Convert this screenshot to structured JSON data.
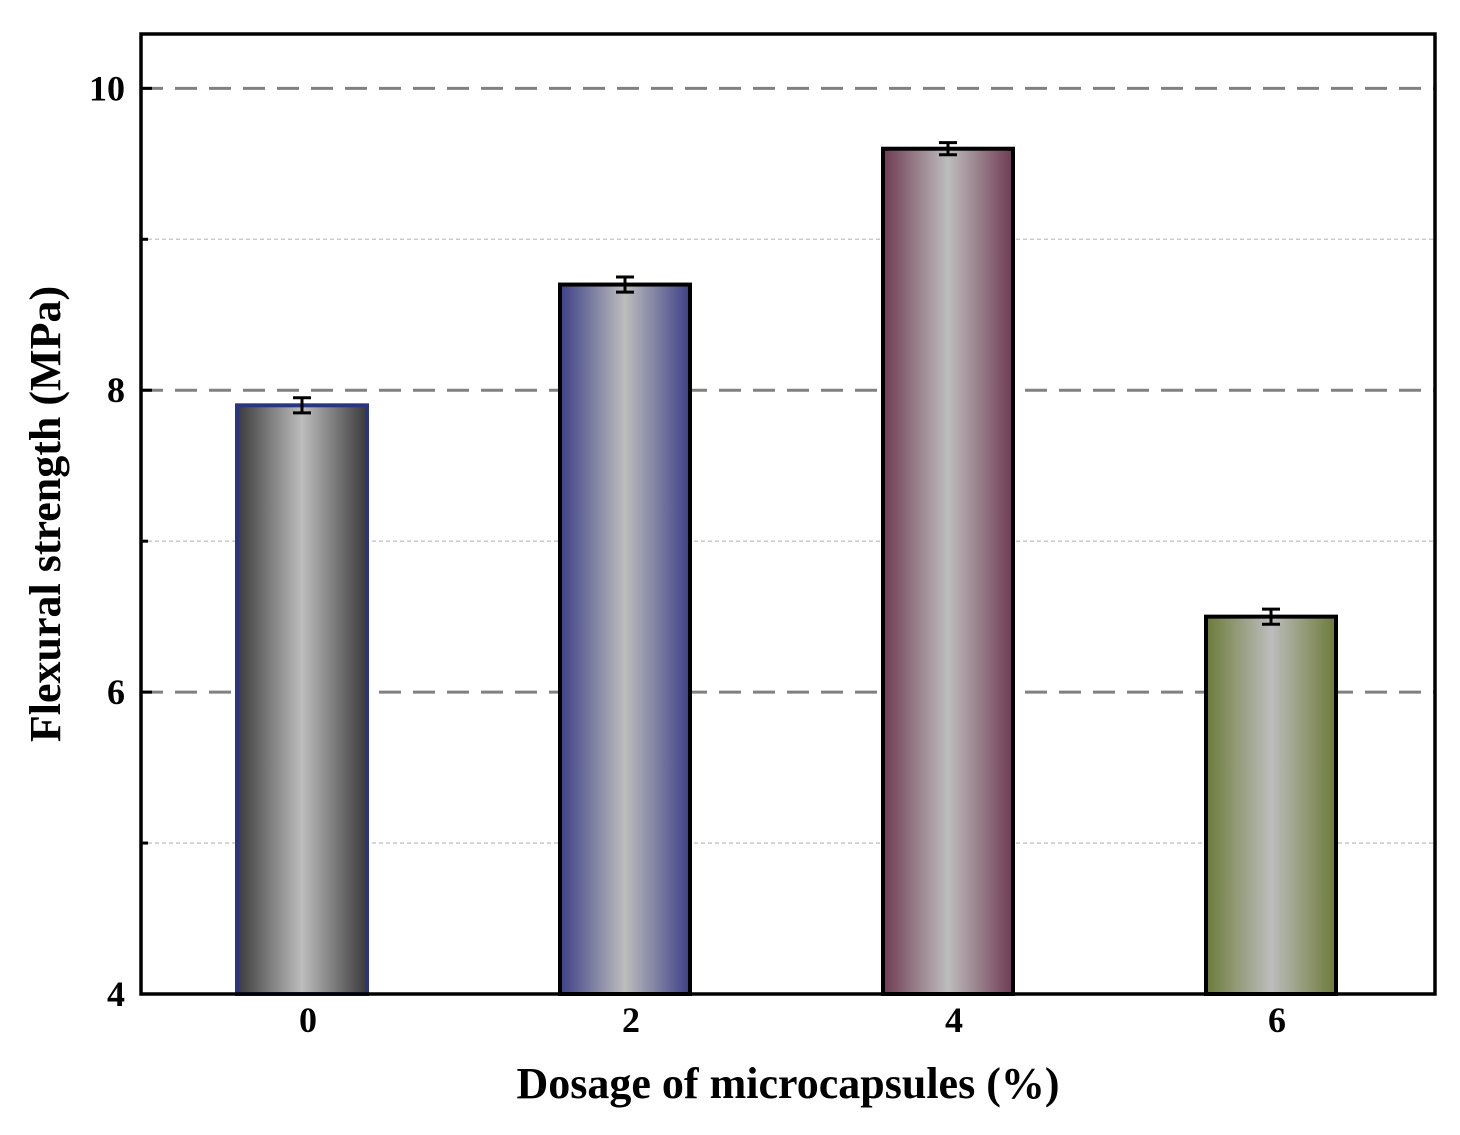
{
  "chart_data": {
    "type": "bar",
    "title": "",
    "xlabel": "Dosage of microcapsules (%)",
    "ylabel": "Flexural strength (MPa)",
    "categories": [
      "0",
      "2",
      "4",
      "6"
    ],
    "values": [
      7.9,
      8.7,
      9.6,
      6.5
    ],
    "errors": [
      0.05,
      0.05,
      0.04,
      0.05
    ],
    "ylim": [
      4,
      10.36
    ],
    "yticks_major": [
      4,
      6,
      8,
      10
    ],
    "yticks_minor": [
      5,
      7,
      9
    ],
    "grid": true,
    "bar_colors": [
      "#3a3a3a",
      "#3c3f86",
      "#6f3a52",
      "#6b7a38"
    ],
    "bar_edge_colors": [
      "#2a3580",
      "#000000",
      "#000000",
      "#000000"
    ],
    "bar_center_color": "#bdbdbd"
  }
}
